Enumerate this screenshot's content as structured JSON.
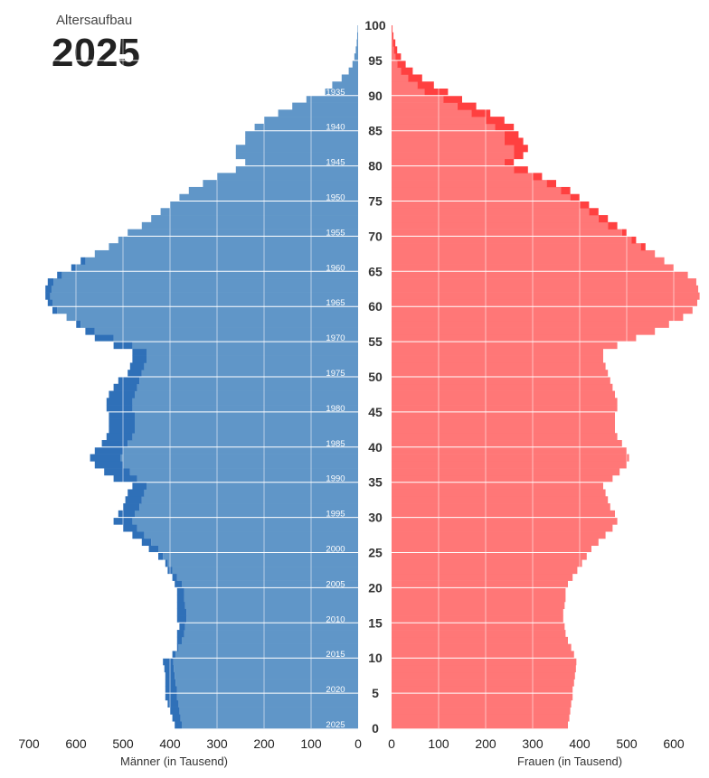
{
  "header": {
    "subtitle": "Altersaufbau",
    "year": "2025"
  },
  "chart_data": {
    "type": "bar",
    "orientation": "horizontal-pyramid",
    "title": "Altersaufbau",
    "year": "2025",
    "xlabel_left": "Männer (in Tausend)",
    "xlabel_right": "Frauen (in Tausend)",
    "x_ticks_left": [
      700,
      600,
      500,
      400,
      300,
      200,
      100,
      0
    ],
    "x_ticks_right": [
      0,
      100,
      200,
      300,
      400,
      500,
      600
    ],
    "age_ticks": [
      0,
      5,
      10,
      15,
      20,
      25,
      30,
      35,
      40,
      45,
      50,
      55,
      60,
      65,
      70,
      75,
      80,
      85,
      90,
      95,
      100
    ],
    "birth_year_ticks": [
      1935,
      1940,
      1945,
      1950,
      1955,
      1960,
      1965,
      1970,
      1975,
      1980,
      1985,
      1990,
      1995,
      2000,
      2005,
      2010,
      2015,
      2020,
      2025
    ],
    "xlim_male": [
      0,
      700
    ],
    "xlim_female": [
      0,
      700
    ],
    "ages": [
      0,
      1,
      2,
      3,
      4,
      5,
      6,
      7,
      8,
      9,
      10,
      11,
      12,
      13,
      14,
      15,
      16,
      17,
      18,
      19,
      20,
      21,
      22,
      23,
      24,
      25,
      26,
      27,
      28,
      29,
      30,
      31,
      32,
      33,
      34,
      35,
      36,
      37,
      38,
      39,
      40,
      41,
      42,
      43,
      44,
      45,
      46,
      47,
      48,
      49,
      50,
      51,
      52,
      53,
      54,
      55,
      56,
      57,
      58,
      59,
      60,
      61,
      62,
      63,
      64,
      65,
      66,
      67,
      68,
      69,
      70,
      71,
      72,
      73,
      74,
      75,
      76,
      77,
      78,
      79,
      80,
      81,
      82,
      83,
      84,
      85,
      86,
      87,
      88,
      89,
      90,
      91,
      92,
      93,
      94,
      95,
      96,
      97,
      98,
      99
    ],
    "series": [
      {
        "name": "Männer",
        "color": "#6096c8",
        "surplus_color": "#2f70b8",
        "values": [
          390,
          395,
          400,
          405,
          410,
          410,
          410,
          410,
          412,
          415,
          395,
          385,
          385,
          385,
          380,
          385,
          385,
          385,
          385,
          385,
          390,
          395,
          405,
          410,
          425,
          445,
          460,
          480,
          500,
          520,
          510,
          500,
          495,
          490,
          480,
          520,
          540,
          560,
          570,
          560,
          545,
          535,
          530,
          530,
          530,
          535,
          535,
          530,
          520,
          510,
          490,
          485,
          480,
          480,
          520,
          560,
          580,
          600,
          620,
          650,
          660,
          665,
          665,
          660,
          640,
          610,
          590,
          560,
          530,
          510,
          490,
          460,
          440,
          420,
          400,
          380,
          360,
          330,
          300,
          260,
          240,
          260,
          260,
          240,
          240,
          220,
          200,
          170,
          140,
          110,
          70,
          55,
          35,
          20,
          12,
          8,
          5,
          3,
          2,
          1
        ]
      },
      {
        "name": "Frauen",
        "color": "#ff7777",
        "surplus_color": "#ff4040",
        "values": [
          375,
          378,
          380,
          382,
          385,
          385,
          388,
          390,
          392,
          393,
          388,
          382,
          375,
          370,
          368,
          365,
          365,
          368,
          370,
          370,
          375,
          385,
          395,
          405,
          415,
          425,
          440,
          455,
          470,
          480,
          475,
          465,
          460,
          455,
          450,
          470,
          485,
          500,
          505,
          500,
          490,
          480,
          475,
          475,
          475,
          480,
          480,
          475,
          470,
          465,
          460,
          455,
          450,
          450,
          480,
          520,
          560,
          590,
          620,
          640,
          650,
          655,
          652,
          648,
          630,
          600,
          580,
          560,
          540,
          520,
          500,
          480,
          460,
          440,
          420,
          400,
          380,
          350,
          320,
          290,
          260,
          280,
          290,
          280,
          270,
          260,
          240,
          210,
          180,
          150,
          120,
          90,
          65,
          45,
          30,
          20,
          12,
          8,
          4,
          2
        ]
      }
    ],
    "grid": true,
    "legend": "none"
  }
}
